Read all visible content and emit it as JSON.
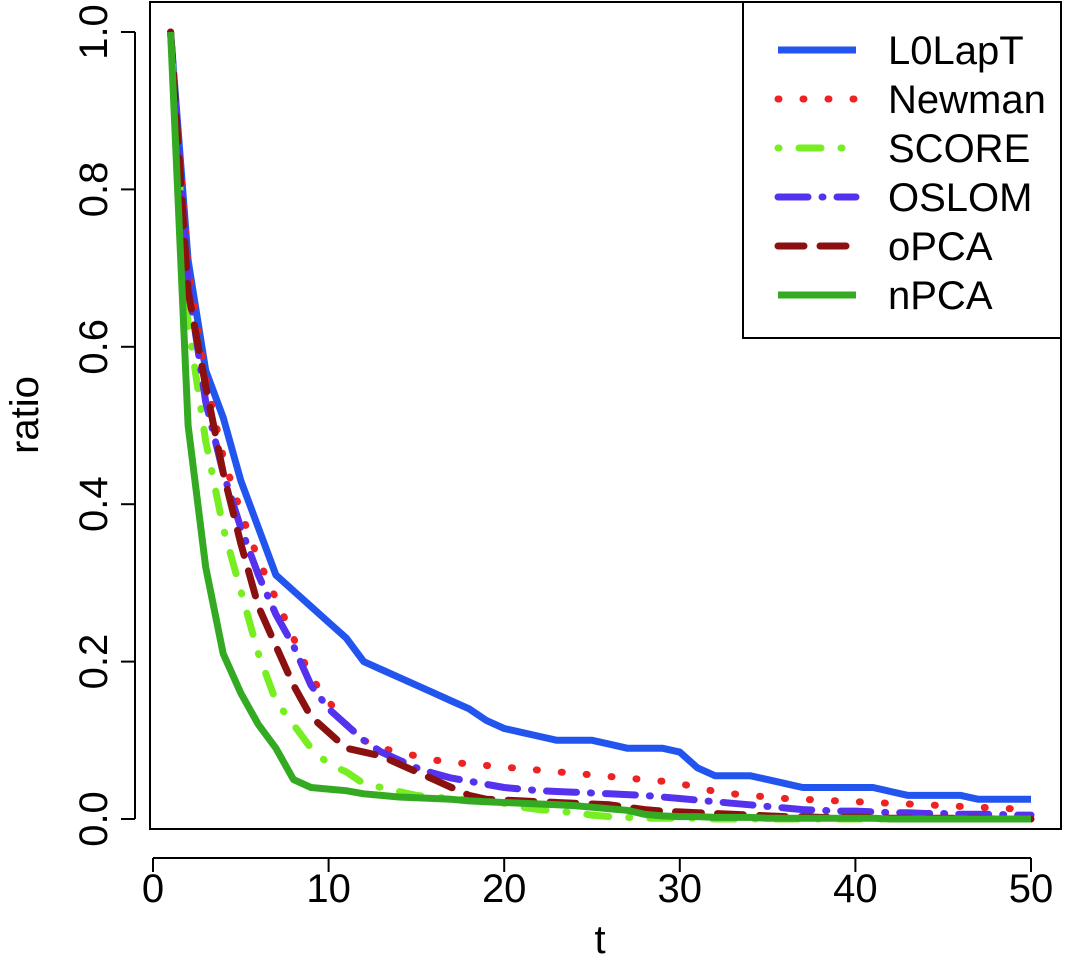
{
  "chart_data": {
    "type": "line",
    "title": "",
    "xlabel": "t",
    "ylabel": "ratio",
    "xlim": [
      0,
      50
    ],
    "ylim": [
      0,
      1.0
    ],
    "x_ticks": [
      0,
      10,
      20,
      30,
      40,
      50
    ],
    "x_tick_labels": [
      "0",
      "10",
      "20",
      "30",
      "40",
      "50"
    ],
    "y_ticks": [
      0,
      0.2,
      0.4,
      0.6,
      0.8,
      1.0
    ],
    "y_tick_labels": [
      "0.0",
      "0.2",
      "0.4",
      "0.6",
      "0.8",
      "1.0"
    ],
    "grid": false,
    "legend_position": "top-right",
    "x": [
      1,
      2,
      3,
      4,
      5,
      6,
      7,
      8,
      9,
      10,
      11,
      12,
      13,
      14,
      15,
      16,
      17,
      18,
      19,
      20,
      21,
      22,
      23,
      24,
      25,
      26,
      27,
      28,
      29,
      30,
      31,
      32,
      33,
      34,
      35,
      36,
      37,
      38,
      39,
      40,
      41,
      42,
      43,
      44,
      45,
      46,
      47,
      48,
      49,
      50
    ],
    "series": [
      {
        "name": "L0LapT",
        "color": "#2255EE",
        "dash": "solid",
        "values": [
          1.0,
          0.71,
          0.57,
          0.51,
          0.43,
          0.37,
          0.31,
          0.29,
          0.27,
          0.25,
          0.23,
          0.2,
          0.19,
          0.18,
          0.17,
          0.16,
          0.15,
          0.14,
          0.125,
          0.115,
          0.11,
          0.105,
          0.1,
          0.1,
          0.1,
          0.095,
          0.09,
          0.09,
          0.09,
          0.085,
          0.065,
          0.055,
          0.055,
          0.055,
          0.05,
          0.045,
          0.04,
          0.04,
          0.04,
          0.04,
          0.04,
          0.035,
          0.03,
          0.03,
          0.03,
          0.03,
          0.025,
          0.025,
          0.025,
          0.025
        ]
      },
      {
        "name": "Newman",
        "color": "#EE2222",
        "dash": "dotted",
        "values": [
          1.0,
          0.7,
          0.56,
          0.46,
          0.39,
          0.33,
          0.28,
          0.23,
          0.18,
          0.15,
          0.12,
          0.1,
          0.09,
          0.085,
          0.08,
          0.075,
          0.072,
          0.07,
          0.068,
          0.066,
          0.064,
          0.062,
          0.06,
          0.058,
          0.056,
          0.054,
          0.052,
          0.05,
          0.048,
          0.045,
          0.04,
          0.035,
          0.032,
          0.03,
          0.028,
          0.026,
          0.025,
          0.024,
          0.023,
          0.022,
          0.021,
          0.02,
          0.019,
          0.018,
          0.017,
          0.016,
          0.015,
          0.014,
          0.013,
          0.012
        ]
      },
      {
        "name": "SCORE",
        "color": "#77EE22",
        "dash": "dashdot",
        "values": [
          1.0,
          0.63,
          0.48,
          0.37,
          0.29,
          0.21,
          0.15,
          0.12,
          0.09,
          0.07,
          0.06,
          0.045,
          0.04,
          0.035,
          0.03,
          0.028,
          0.026,
          0.024,
          0.022,
          0.02,
          0.015,
          0.012,
          0.01,
          0.008,
          0.005,
          0.003,
          0.002,
          0.001,
          0.001,
          0.001,
          0.001,
          0.0,
          0.0,
          0.0,
          0.0,
          0.0,
          0.0,
          0.0,
          0.0,
          0.0,
          0.0,
          0.0,
          0.0,
          0.0,
          0.0,
          0.0,
          0.0,
          0.0,
          0.0,
          0.0
        ]
      },
      {
        "name": "OSLOM",
        "color": "#5533EE",
        "dash": "longdash-dot",
        "values": [
          1.0,
          0.68,
          0.53,
          0.44,
          0.37,
          0.31,
          0.26,
          0.22,
          0.17,
          0.14,
          0.12,
          0.1,
          0.085,
          0.075,
          0.065,
          0.058,
          0.052,
          0.048,
          0.044,
          0.04,
          0.038,
          0.036,
          0.035,
          0.034,
          0.033,
          0.032,
          0.031,
          0.03,
          0.028,
          0.026,
          0.024,
          0.022,
          0.02,
          0.018,
          0.016,
          0.014,
          0.012,
          0.011,
          0.01,
          0.01,
          0.009,
          0.008,
          0.008,
          0.007,
          0.007,
          0.006,
          0.006,
          0.006,
          0.005,
          0.005
        ]
      },
      {
        "name": "oPCA",
        "color": "#8B1111",
        "dash": "dashed",
        "values": [
          1.0,
          0.67,
          0.55,
          0.44,
          0.35,
          0.27,
          0.22,
          0.17,
          0.13,
          0.11,
          0.09,
          0.085,
          0.08,
          0.07,
          0.06,
          0.05,
          0.04,
          0.03,
          0.025,
          0.024,
          0.023,
          0.022,
          0.021,
          0.02,
          0.019,
          0.018,
          0.015,
          0.012,
          0.01,
          0.009,
          0.008,
          0.007,
          0.006,
          0.005,
          0.004,
          0.003,
          0.003,
          0.002,
          0.002,
          0.002,
          0.002,
          0.001,
          0.001,
          0.001,
          0.001,
          0.001,
          0.001,
          0.0,
          0.0,
          0.0
        ]
      },
      {
        "name": "nPCA",
        "color": "#33AA22",
        "dash": "solid",
        "values": [
          1.0,
          0.5,
          0.32,
          0.21,
          0.16,
          0.12,
          0.09,
          0.05,
          0.04,
          0.038,
          0.036,
          0.032,
          0.03,
          0.028,
          0.027,
          0.026,
          0.025,
          0.023,
          0.022,
          0.021,
          0.02,
          0.019,
          0.018,
          0.017,
          0.015,
          0.013,
          0.011,
          0.006,
          0.004,
          0.003,
          0.003,
          0.002,
          0.002,
          0.002,
          0.001,
          0.001,
          0.001,
          0.001,
          0.001,
          0.001,
          0.001,
          0.0,
          0.0,
          0.0,
          0.0,
          0.0,
          0.0,
          0.0,
          0.0,
          0.0
        ]
      }
    ]
  }
}
